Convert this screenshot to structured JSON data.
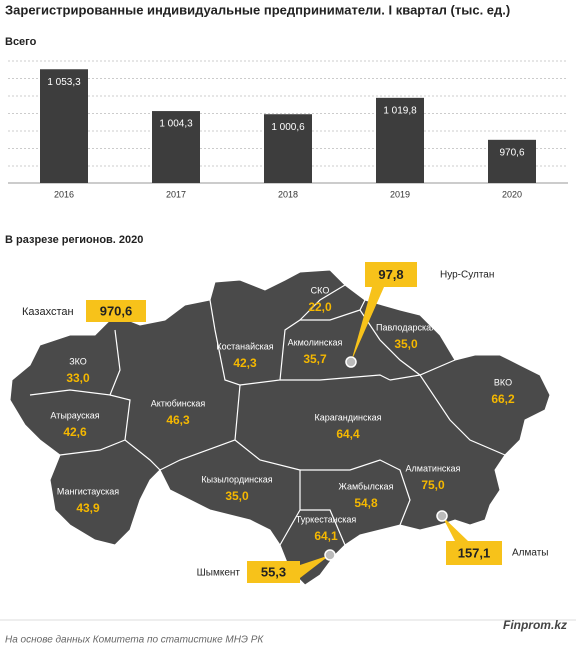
{
  "title": "Зарегистрированные индивидуальные предприниматели. I квартал  (тыс. ед.)",
  "chart_data": {
    "type": "bar",
    "subtitle": "Всего",
    "categories": [
      "2016",
      "2017",
      "2018",
      "2019",
      "2020"
    ],
    "values": [
      1053.3,
      1004.3,
      1000.6,
      1019.8,
      970.6
    ],
    "value_labels": [
      "1 053,3",
      "1 004,3",
      "1 000,6",
      "1 019,8",
      "970,6"
    ],
    "color": "#3d3d3d",
    "ylim": [
      920,
      1070
    ],
    "grid": true
  },
  "map": {
    "title": "В разрезе регионов.  2020",
    "total": {
      "label": "Казахстан",
      "value": "970,6"
    },
    "regions": [
      {
        "name": "ЗКО",
        "value": "33,0"
      },
      {
        "name": "Атырауская",
        "value": "42,6"
      },
      {
        "name": "Мангистауская",
        "value": "43,9"
      },
      {
        "name": "Актюбинская",
        "value": "46,3"
      },
      {
        "name": "Костанайская",
        "value": "42,3"
      },
      {
        "name": "СКО",
        "value": "22,0"
      },
      {
        "name": "Акмолинская",
        "value": "35,7"
      },
      {
        "name": "Павлодарская",
        "value": "35,0"
      },
      {
        "name": "ВКО",
        "value": "66,2"
      },
      {
        "name": "Карагандинская",
        "value": "64,4"
      },
      {
        "name": "Кызылординская",
        "value": "35,0"
      },
      {
        "name": "Жамбылская",
        "value": "54,8"
      },
      {
        "name": "Алматинская",
        "value": "75,0"
      },
      {
        "name": "Туркестанская",
        "value": "64,1"
      }
    ],
    "cities": [
      {
        "name": "Нур-Султан",
        "value": "97,8"
      },
      {
        "name": "Алматы",
        "value": "157,1"
      },
      {
        "name": "Шымкент",
        "value": "55,3"
      }
    ]
  },
  "footer": {
    "source": "На основе данных  Комитета по статистике МНЭ РК",
    "brand": "Finprom.kz"
  }
}
